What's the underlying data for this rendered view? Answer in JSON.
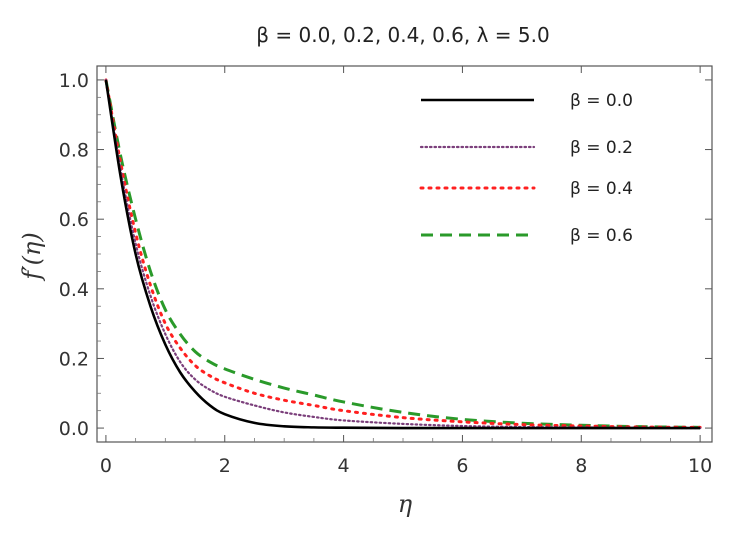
{
  "chart_data": {
    "type": "line",
    "title": "β = 0.0, 0.2, 0.4, 0.6, λ = 5.0",
    "xlabel": "η",
    "ylabel": "f′(η)",
    "xlim": [
      -0.15,
      10.2
    ],
    "ylim": [
      -0.04,
      1.04
    ],
    "xticks": [
      "0",
      "2",
      "4",
      "6",
      "8",
      "10"
    ],
    "yticks": [
      "0.0",
      "0.2",
      "0.4",
      "0.6",
      "0.8",
      "1.0"
    ],
    "grid": false,
    "legend_position": "top-right",
    "x": [
      0,
      0.25,
      0.5,
      0.75,
      1,
      1.25,
      1.5,
      1.75,
      2,
      2.5,
      3,
      3.5,
      4,
      5,
      6,
      7,
      8,
      9,
      10
    ],
    "series": [
      {
        "name": "β = 0.0",
        "color": "#000000",
        "style": "solid",
        "values": [
          1.0,
          0.72,
          0.5,
          0.35,
          0.24,
          0.16,
          0.105,
          0.065,
          0.04,
          0.015,
          0.005,
          0.002,
          0.001,
          0.0,
          0.0,
          0.0,
          0.0,
          0.0,
          0.0
        ]
      },
      {
        "name": "β = 0.2",
        "color": "#7b3f7b",
        "style": "dotted-fine",
        "values": [
          1.0,
          0.74,
          0.53,
          0.38,
          0.27,
          0.19,
          0.14,
          0.11,
          0.09,
          0.065,
          0.045,
          0.032,
          0.022,
          0.012,
          0.006,
          0.003,
          0.002,
          0.001,
          0.0
        ]
      },
      {
        "name": "β = 0.4",
        "color": "#ff2020",
        "style": "dotted",
        "values": [
          1.0,
          0.76,
          0.56,
          0.41,
          0.3,
          0.23,
          0.18,
          0.15,
          0.13,
          0.1,
          0.08,
          0.065,
          0.05,
          0.03,
          0.018,
          0.01,
          0.006,
          0.003,
          0.002
        ]
      },
      {
        "name": "β = 0.6",
        "color": "#2a9a2a",
        "style": "dashed",
        "values": [
          1.0,
          0.78,
          0.6,
          0.45,
          0.34,
          0.27,
          0.22,
          0.19,
          0.17,
          0.14,
          0.115,
          0.095,
          0.075,
          0.045,
          0.025,
          0.014,
          0.008,
          0.004,
          0.002
        ]
      }
    ]
  }
}
